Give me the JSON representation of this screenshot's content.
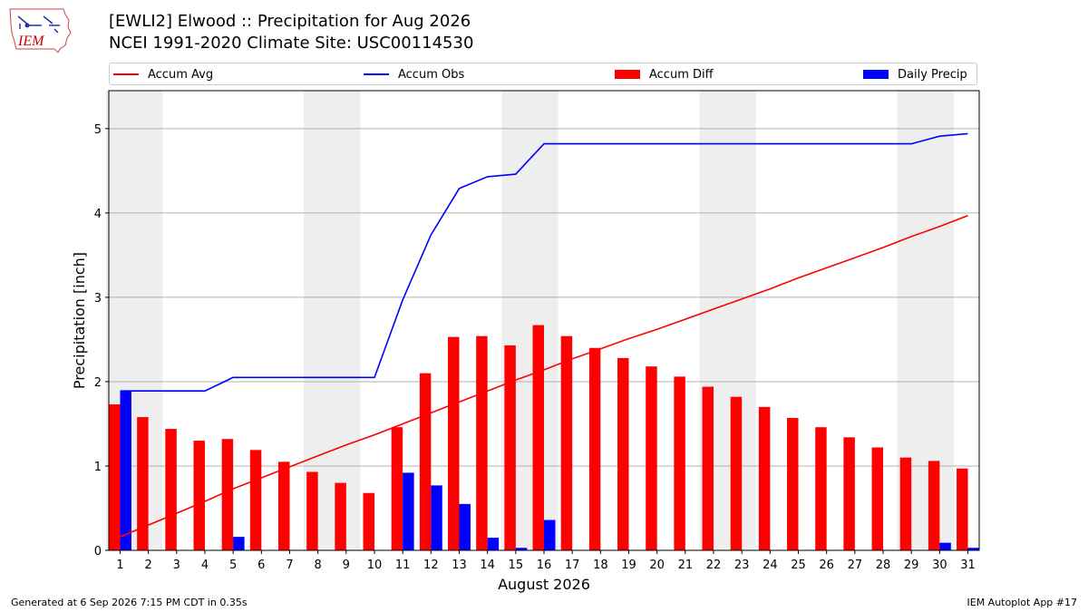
{
  "header": {
    "title_line1": "[EWLI2] Elwood :: Precipitation for Aug 2026",
    "title_line2": "NCEI 1991-2020 Climate Site: USC00114530"
  },
  "logo": {
    "text": "IEM",
    "icon": "iem-iowa-logo-icon",
    "color": "#cc0000"
  },
  "legend": {
    "items": [
      {
        "label": "Accum Avg",
        "kind": "line",
        "color": "#ff0000"
      },
      {
        "label": "Accum Obs",
        "kind": "line",
        "color": "#0000ff"
      },
      {
        "label": "Accum Diff",
        "kind": "bar",
        "color": "#ff0000"
      },
      {
        "label": "Daily Precip",
        "kind": "bar",
        "color": "#0000ff"
      }
    ]
  },
  "footer": {
    "generated": "Generated at 6 Sep 2026 7:15 PM CDT in 0.35s",
    "app": "IEM Autoplot App #17"
  },
  "chart_data": {
    "type": "bar",
    "xlabel": "August 2026",
    "ylabel": "Precipitation [inch]",
    "ylim": [
      0,
      5.45
    ],
    "yticks": [
      0,
      1,
      2,
      3,
      4,
      5
    ],
    "grid": "horizontal",
    "legend_position": "top",
    "weekend_shading_color": "#eeeeee",
    "weekend_shading_days": [
      [
        1,
        2
      ],
      [
        8,
        9
      ],
      [
        15,
        16
      ],
      [
        22,
        23
      ],
      [
        29,
        30
      ]
    ],
    "categories": [
      "1",
      "2",
      "3",
      "4",
      "5",
      "6",
      "7",
      "8",
      "9",
      "10",
      "11",
      "12",
      "13",
      "14",
      "15",
      "16",
      "17",
      "18",
      "19",
      "20",
      "21",
      "22",
      "23",
      "24",
      "25",
      "26",
      "27",
      "28",
      "29",
      "30",
      "31"
    ],
    "series": [
      {
        "name": "Accum Diff",
        "kind": "bar",
        "color": "#ff0000",
        "values": [
          1.73,
          1.58,
          1.44,
          1.3,
          1.32,
          1.19,
          1.05,
          0.93,
          0.8,
          0.68,
          1.46,
          2.1,
          2.53,
          2.54,
          2.43,
          2.67,
          2.54,
          2.4,
          2.28,
          2.18,
          2.06,
          1.94,
          1.82,
          1.7,
          1.57,
          1.46,
          1.34,
          1.22,
          1.1,
          1.06,
          0.97
        ]
      },
      {
        "name": "Daily Precip",
        "kind": "bar",
        "color": "#0000ff",
        "values": [
          1.89,
          0,
          0,
          0,
          0.16,
          0,
          0,
          0,
          0,
          0,
          0.92,
          0.77,
          0.55,
          0.15,
          0.03,
          0.36,
          0,
          0,
          0,
          0,
          0,
          0,
          0,
          0,
          0,
          0,
          0,
          0,
          0,
          0.09,
          0.03
        ]
      },
      {
        "name": "Accum Avg",
        "kind": "line",
        "color": "#ff0000",
        "values": [
          0.16,
          0.3,
          0.44,
          0.58,
          0.73,
          0.86,
          0.99,
          1.12,
          1.25,
          1.37,
          1.5,
          1.63,
          1.76,
          1.89,
          2.02,
          2.14,
          2.27,
          2.39,
          2.51,
          2.62,
          2.74,
          2.86,
          2.98,
          3.1,
          3.23,
          3.35,
          3.47,
          3.59,
          3.72,
          3.84,
          3.97
        ]
      },
      {
        "name": "Accum Obs",
        "kind": "line",
        "color": "#0000ff",
        "values": [
          1.89,
          1.89,
          1.89,
          1.89,
          2.05,
          2.05,
          2.05,
          2.05,
          2.05,
          2.05,
          2.97,
          3.74,
          4.29,
          4.43,
          4.46,
          4.82,
          4.82,
          4.82,
          4.82,
          4.82,
          4.82,
          4.82,
          4.82,
          4.82,
          4.82,
          4.82,
          4.82,
          4.82,
          4.82,
          4.91,
          4.94
        ]
      }
    ]
  }
}
